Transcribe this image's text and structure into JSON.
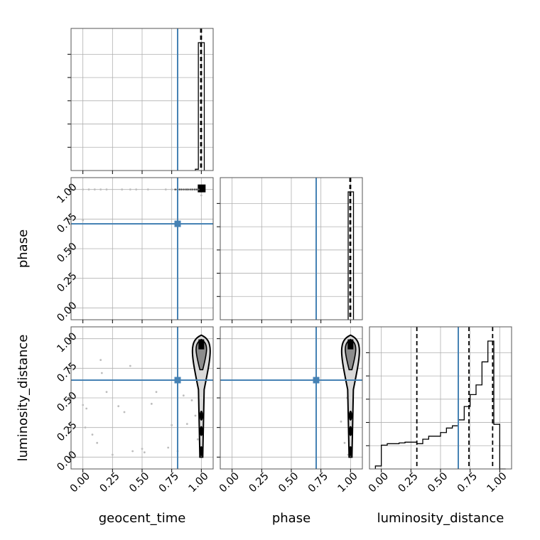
{
  "chart_data": {
    "type": "corner",
    "parameters": [
      "geocent_time",
      "phase",
      "luminosity_distance"
    ],
    "axis_labels": {
      "geocent_time": "geocent_time",
      "phase": "phase",
      "luminosity_distance": "luminosity_distance"
    },
    "tick_values": [
      0,
      0.25,
      0.5,
      0.75,
      1
    ],
    "tick_labels": [
      "0.00",
      "0.25",
      "0.50",
      "0.75",
      "1.00"
    ],
    "axis_range": [
      -0.1,
      1.1
    ],
    "grid": true,
    "truth_color": "#4682b4",
    "truths": {
      "geocent_time": 0.8,
      "phase": 0.71,
      "luminosity_distance": 0.65
    },
    "quantiles": {
      "geocent_time": [
        0.995,
        1.0,
        1.0
      ],
      "phase": [
        0.995,
        1.0,
        1.0
      ],
      "luminosity_distance": [
        0.3,
        0.74,
        0.94
      ]
    },
    "histograms": {
      "geocent_time": {
        "bins": [
          0.95,
          0.975,
          1.0,
          1.025
        ],
        "counts": [
          0.01,
          1.0,
          1.0
        ]
      },
      "phase": {
        "bins": [
          0.98,
          1.0,
          1.025
        ],
        "counts": [
          1.0,
          1.0
        ]
      },
      "luminosity_distance": {
        "bins": [
          -0.05,
          0.0,
          0.05,
          0.1,
          0.15,
          0.2,
          0.25,
          0.3,
          0.35,
          0.4,
          0.45,
          0.5,
          0.55,
          0.6,
          0.65,
          0.7,
          0.75,
          0.8,
          0.85,
          0.9,
          0.95,
          1.0,
          1.05
        ],
        "counts": [
          0.02,
          0.16,
          0.17,
          0.17,
          0.175,
          0.18,
          0.18,
          0.17,
          0.2,
          0.22,
          0.22,
          0.245,
          0.275,
          0.29,
          0.33,
          0.42,
          0.5,
          0.565,
          0.72,
          0.86,
          0.3,
          0.0
        ]
      }
    },
    "scatter": {
      "phase_vs_geocent_time": [
        [
          0.0,
          1.0
        ],
        [
          0.05,
          1.0
        ],
        [
          0.1,
          1.0
        ],
        [
          0.15,
          1.0
        ],
        [
          0.2,
          1.0
        ],
        [
          0.33,
          1.0
        ],
        [
          0.4,
          1.0
        ],
        [
          0.45,
          1.0
        ],
        [
          0.55,
          1.0
        ],
        [
          0.7,
          1.0
        ],
        [
          0.75,
          1.0
        ],
        [
          0.82,
          1.0
        ],
        [
          0.88,
          1.0
        ],
        [
          0.92,
          1.0
        ],
        [
          0.95,
          1.0
        ],
        [
          0.97,
          1.0
        ],
        [
          1.0,
          0.98
        ],
        [
          1.0,
          0.95
        ],
        [
          0.0,
          0.74
        ]
      ],
      "luminosity_distance_vs_geocent_time": [
        [
          0.0,
          0.44
        ],
        [
          0.03,
          0.41
        ],
        [
          0.02,
          0.25
        ],
        [
          0.08,
          0.19
        ],
        [
          0.12,
          0.12
        ],
        [
          0.15,
          0.82
        ],
        [
          0.16,
          0.71
        ],
        [
          0.2,
          0.55
        ],
        [
          0.25,
          0.02
        ],
        [
          0.3,
          0.43
        ],
        [
          0.35,
          0.38
        ],
        [
          0.4,
          0.77
        ],
        [
          0.42,
          0.05
        ],
        [
          0.5,
          0.07
        ],
        [
          0.52,
          0.04
        ],
        [
          0.58,
          0.45
        ],
        [
          0.62,
          0.55
        ],
        [
          0.72,
          0.08
        ],
        [
          0.75,
          0.27
        ],
        [
          0.8,
          0.05
        ],
        [
          0.85,
          0.52
        ],
        [
          0.88,
          0.28
        ],
        [
          0.92,
          0.48
        ],
        [
          0.95,
          0.35
        ],
        [
          0.97,
          0.15
        ],
        [
          0.99,
          0.08
        ],
        [
          0.98,
          0.6
        ]
      ],
      "luminosity_distance_vs_phase": [
        [
          0.92,
          0.3
        ],
        [
          0.95,
          0.12
        ],
        [
          0.97,
          0.5
        ],
        [
          0.98,
          0.02
        ],
        [
          0.99,
          0.2
        ],
        [
          0.98,
          0.72
        ]
      ]
    },
    "contour_core": {
      "x": 1.0,
      "y_peak": 0.93,
      "y_min": 0.0,
      "y_max": 1.03
    }
  }
}
